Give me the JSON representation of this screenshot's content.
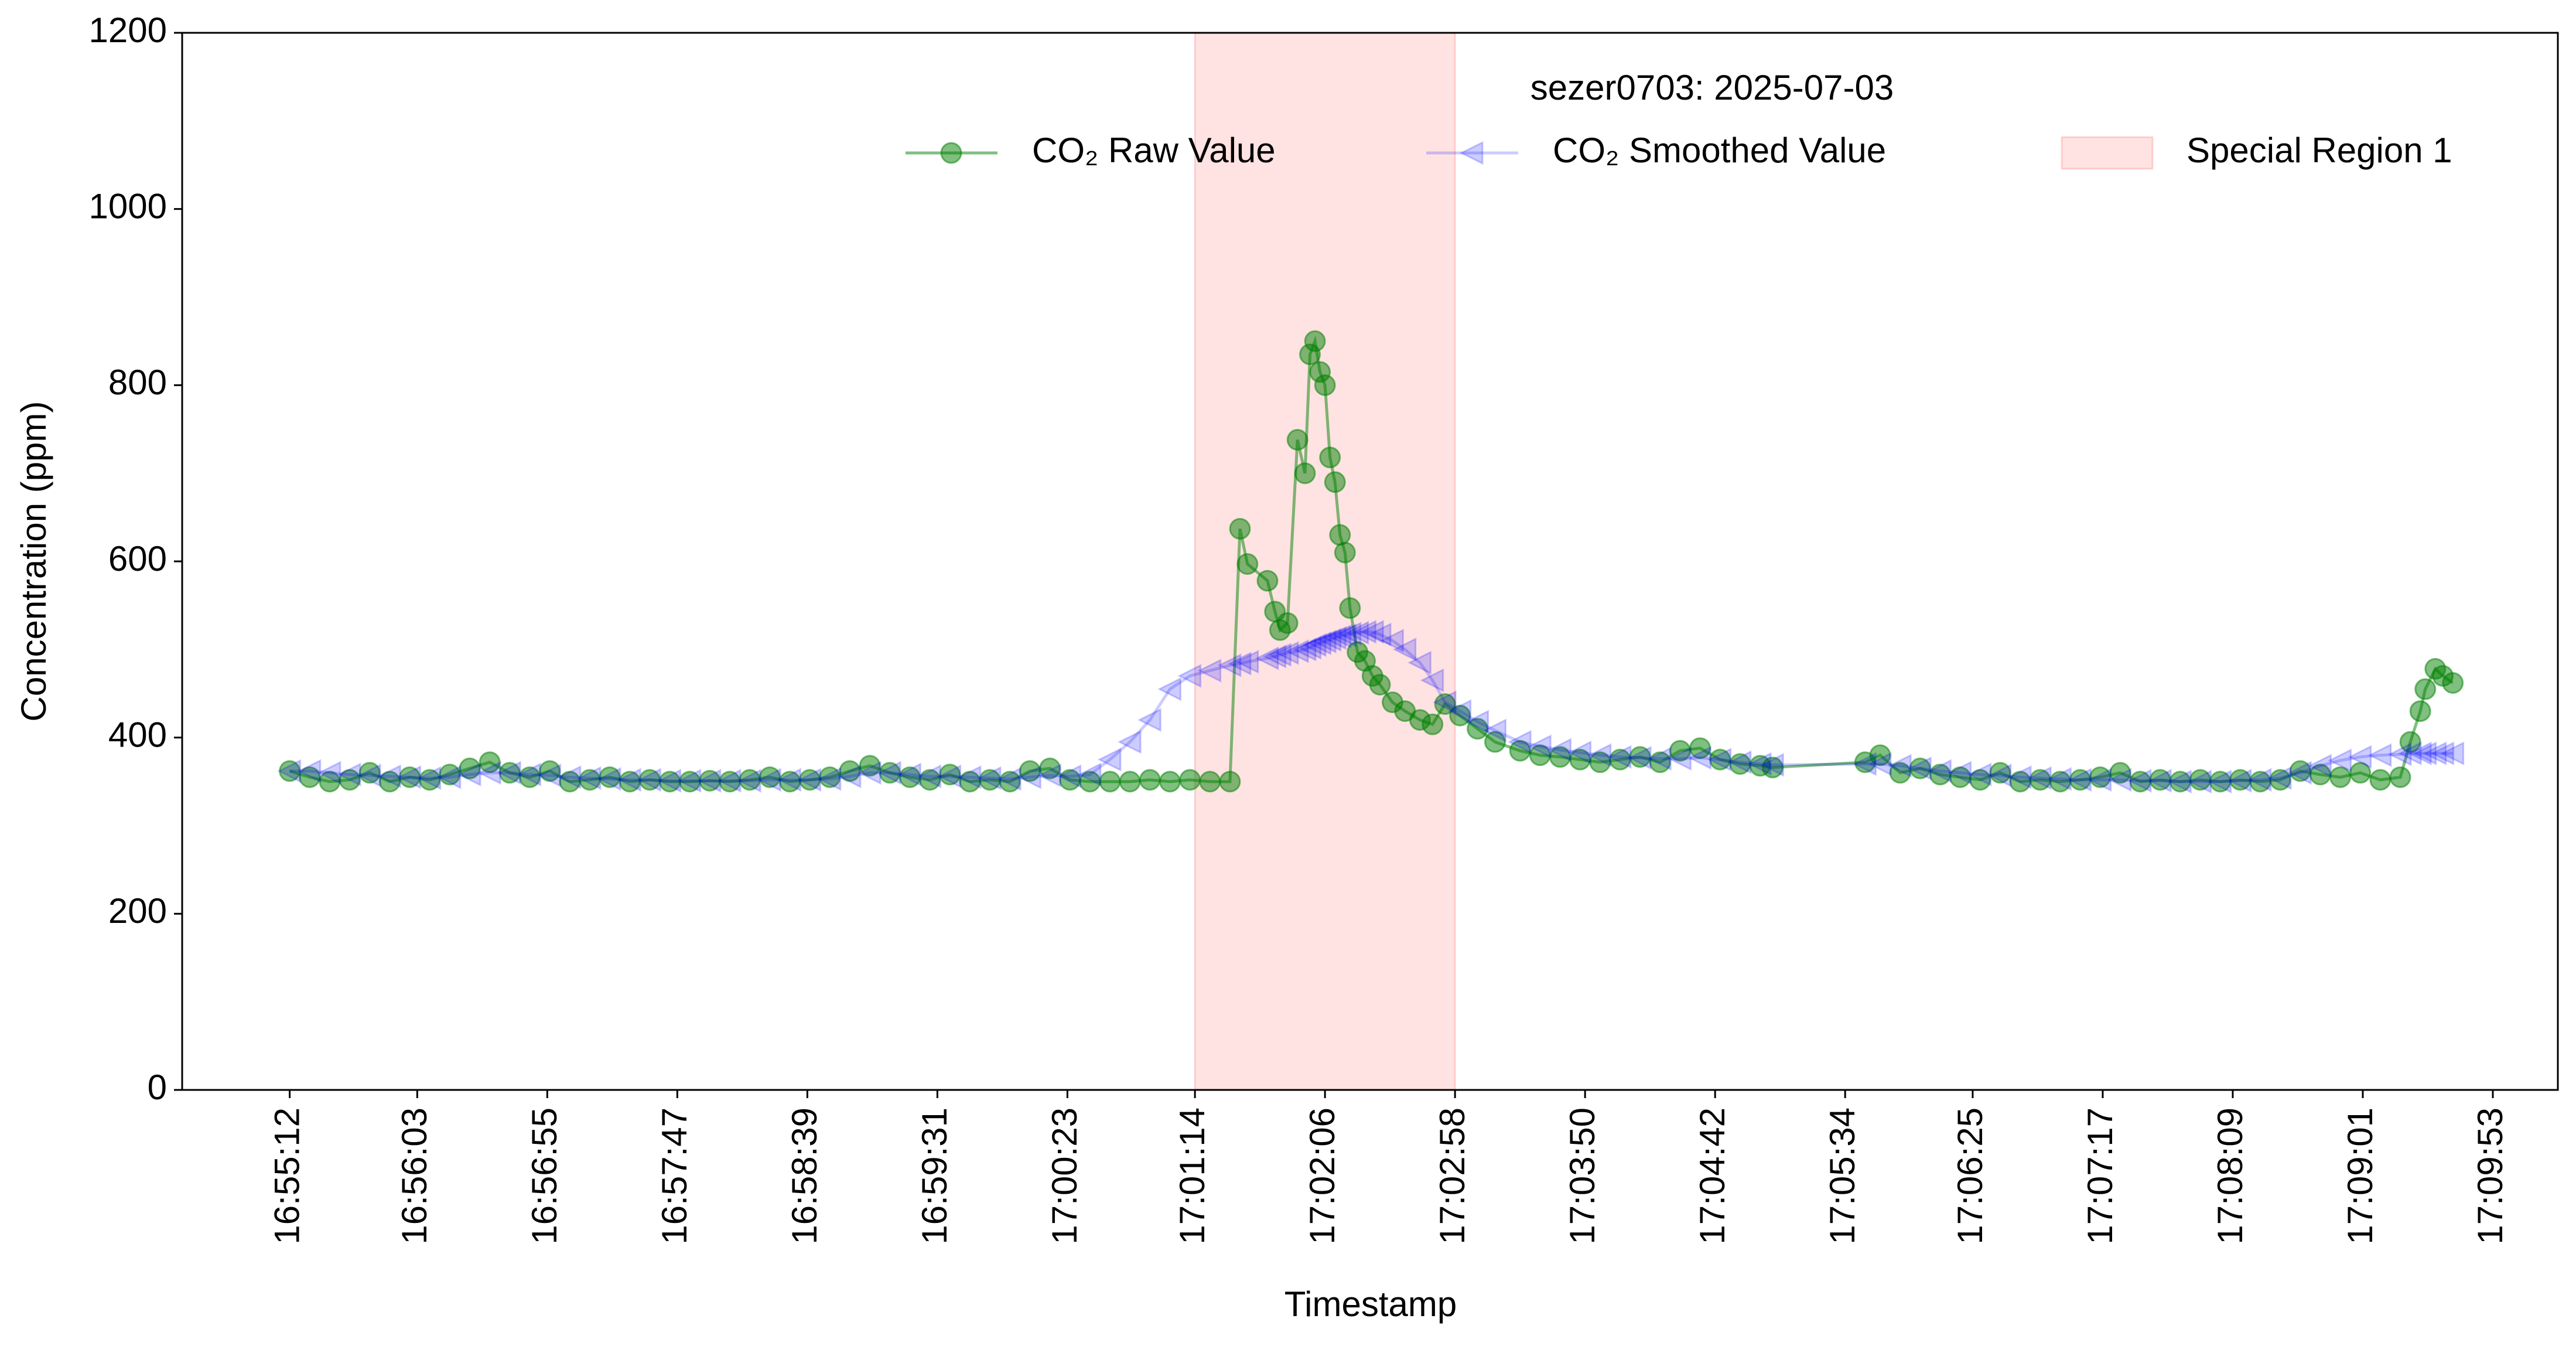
{
  "chart_data": {
    "type": "line",
    "title": "sezer0703: 2025-07-03",
    "xlabel": "Timestamp",
    "ylabel": "Concentration (ppm)",
    "x": [
      "16:55:12",
      "16:55:20",
      "16:55:28",
      "16:55:36",
      "16:55:44",
      "16:55:52",
      "16:56:00",
      "16:56:08",
      "16:56:16",
      "16:56:24",
      "16:56:32",
      "16:56:40",
      "16:56:48",
      "16:56:56",
      "16:57:04",
      "16:57:12",
      "16:57:20",
      "16:57:28",
      "16:57:36",
      "16:57:44",
      "16:57:52",
      "16:58:00",
      "16:58:08",
      "16:58:16",
      "16:58:24",
      "16:58:32",
      "16:58:40",
      "16:58:48",
      "16:58:56",
      "16:59:04",
      "16:59:12",
      "16:59:20",
      "16:59:28",
      "16:59:36",
      "16:59:44",
      "16:59:52",
      "17:00:00",
      "17:00:08",
      "17:00:16",
      "17:00:24",
      "17:00:32",
      "17:00:40",
      "17:00:48",
      "17:00:56",
      "17:01:04",
      "17:01:12",
      "17:01:20",
      "17:01:28",
      "17:01:32",
      "17:01:35",
      "17:01:43",
      "17:01:46",
      "17:01:48",
      "17:01:51",
      "17:01:55",
      "17:01:58",
      "17:02:00",
      "17:02:02",
      "17:02:04",
      "17:02:06",
      "17:02:08",
      "17:02:10",
      "17:02:12",
      "17:02:14",
      "17:02:16",
      "17:02:19",
      "17:02:22",
      "17:02:25",
      "17:02:28",
      "17:02:33",
      "17:02:38",
      "17:02:44",
      "17:02:49",
      "17:02:54",
      "17:03:00",
      "17:03:07",
      "17:03:14",
      "17:03:24",
      "17:03:32",
      "17:03:40",
      "17:03:48",
      "17:03:56",
      "17:04:04",
      "17:04:12",
      "17:04:20",
      "17:04:28",
      "17:04:36",
      "17:04:44",
      "17:04:52",
      "17:05:00",
      "17:05:05",
      "17:05:42",
      "17:05:48",
      "17:05:56",
      "17:06:04",
      "17:06:12",
      "17:06:20",
      "17:06:28",
      "17:06:36",
      "17:06:44",
      "17:06:52",
      "17:07:00",
      "17:07:08",
      "17:07:16",
      "17:07:24",
      "17:07:32",
      "17:07:40",
      "17:07:48",
      "17:07:56",
      "17:08:04",
      "17:08:12",
      "17:08:20",
      "17:08:28",
      "17:08:36",
      "17:08:44",
      "17:08:52",
      "17:09:00",
      "17:09:08",
      "17:09:16",
      "17:09:20",
      "17:09:24",
      "17:09:26",
      "17:09:30",
      "17:09:33",
      "17:09:37"
    ],
    "series": [
      {
        "name": "CO₂ Raw Value",
        "color": "green",
        "marker": "circle",
        "values": [
          362,
          355,
          350,
          352,
          360,
          350,
          355,
          352,
          358,
          365,
          372,
          360,
          355,
          362,
          350,
          352,
          355,
          350,
          352,
          350,
          350,
          351,
          350,
          352,
          355,
          350,
          352,
          355,
          362,
          368,
          360,
          355,
          352,
          358,
          350,
          352,
          350,
          362,
          365,
          352,
          350,
          350,
          350,
          352,
          350,
          352,
          350,
          350,
          637,
          597,
          578,
          543,
          522,
          530,
          738,
          700,
          835,
          850,
          815,
          800,
          718,
          690,
          630,
          610,
          547,
          497,
          487,
          470,
          460,
          440,
          430,
          420,
          415,
          438,
          425,
          410,
          395,
          385,
          380,
          378,
          375,
          372,
          375,
          378,
          372,
          385,
          388,
          375,
          370,
          368,
          366,
          372,
          380,
          360,
          365,
          358,
          355,
          352,
          360,
          350,
          352,
          350,
          352,
          355,
          360,
          350,
          352,
          350,
          352,
          350,
          352,
          350,
          352,
          362,
          358,
          355,
          360,
          352,
          355,
          395,
          430,
          455,
          478,
          470,
          462
        ]
      },
      {
        "name": "CO₂ Smoothed Value",
        "color": "blue",
        "marker": "triangle-left",
        "values": [
          362,
          362,
          360,
          358,
          357,
          356,
          355,
          354,
          355,
          358,
          360,
          360,
          358,
          357,
          355,
          354,
          353,
          352,
          352,
          351,
          351,
          351,
          351,
          351,
          352,
          352,
          352,
          353,
          356,
          360,
          360,
          358,
          356,
          356,
          355,
          354,
          353,
          355,
          357,
          356,
          358,
          375,
          395,
          420,
          455,
          470,
          476,
          482,
          484,
          486,
          490,
          492,
          494,
          496,
          498,
          500,
          502,
          505,
          507,
          509,
          511,
          513,
          515,
          516,
          518,
          519,
          520,
          520,
          517,
          510,
          500,
          485,
          465,
          440,
          430,
          418,
          408,
          395,
          390,
          386,
          383,
          380,
          378,
          377,
          376,
          376,
          377,
          375,
          372,
          370,
          369,
          370,
          370,
          368,
          365,
          362,
          360,
          358,
          357,
          355,
          354,
          353,
          352,
          352,
          352,
          351,
          351,
          350,
          350,
          350,
          351,
          352,
          354,
          360,
          368,
          374,
          378,
          380,
          381,
          382,
          382,
          382,
          382,
          382,
          382
        ]
      }
    ],
    "spans": [
      {
        "name": "Special Region 1",
        "start": "17:01:14",
        "end": "17:02:58",
        "color": "#ff0000"
      }
    ],
    "xlim": [
      "16:54:29",
      "17:10:19"
    ],
    "xticks": [
      "16:55:12",
      "16:56:03",
      "16:56:55",
      "16:57:47",
      "16:58:39",
      "16:59:31",
      "17:00:23",
      "17:01:14",
      "17:02:06",
      "17:02:58",
      "17:03:50",
      "17:04:42",
      "17:05:34",
      "17:06:25",
      "17:07:17",
      "17:08:09",
      "17:09:01",
      "17:09:53"
    ],
    "ylim": [
      0,
      1200
    ],
    "yticks": [
      0,
      200,
      400,
      600,
      800,
      1000,
      1200
    ],
    "grid": false,
    "legend": "upper right"
  }
}
